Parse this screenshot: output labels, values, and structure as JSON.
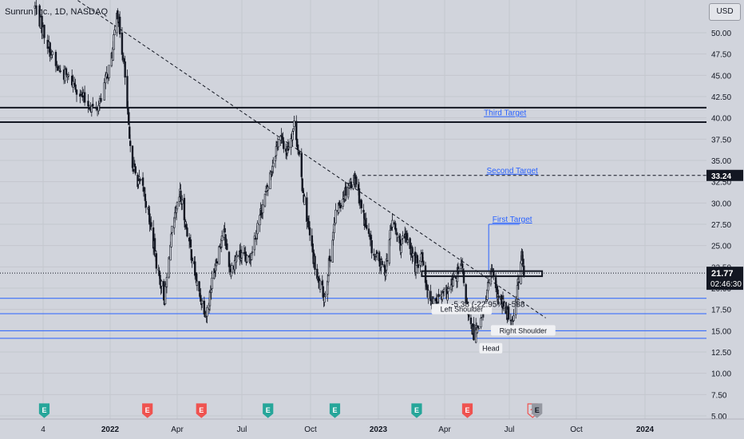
{
  "header": {
    "symbol_title": "Sunrun Inc., 1D, NASDAQ",
    "currency_button": "USD"
  },
  "colors": {
    "background": "#d1d4dc",
    "candle": "#131722",
    "level_line": "#2962ff",
    "target_text": "#2962ff",
    "target_line": "#2962ff"
  },
  "chart_data": {
    "type": "candlestick",
    "symbol": "Sunrun Inc.",
    "interval": "1D",
    "exchange": "NASDAQ",
    "ylim": [
      5.0,
      52.5
    ],
    "y_ticks": [
      "50.00",
      "47.50",
      "45.00",
      "42.50",
      "40.00",
      "37.50",
      "35.00",
      "32.50",
      "30.00",
      "27.50",
      "25.00",
      "22.50",
      "20.00",
      "17.50",
      "15.00",
      "12.50",
      "10.00",
      "7.50",
      "5.00"
    ],
    "x_ticks": [
      "4",
      "2022",
      "Apr",
      "Jul",
      "Oct",
      "2023",
      "Apr",
      "Jul",
      "Oct",
      "2024"
    ],
    "close_path": [
      {
        "date": "2021-10-28",
        "close": 53.0
      },
      {
        "date": "2021-11-15",
        "close": 46.0
      },
      {
        "date": "2021-12-01",
        "close": 44.0
      },
      {
        "date": "2021-12-10",
        "close": 42.0
      },
      {
        "date": "2021-12-20",
        "close": 40.8
      },
      {
        "date": "2022-01-05",
        "close": 48.0
      },
      {
        "date": "2022-01-10",
        "close": 53.0
      },
      {
        "date": "2022-01-20",
        "close": 46.0
      },
      {
        "date": "2022-01-28",
        "close": 36.0
      },
      {
        "date": "2022-02-05",
        "close": 33.0
      },
      {
        "date": "2022-02-15",
        "close": 31.5
      },
      {
        "date": "2022-02-25",
        "close": 27.0
      },
      {
        "date": "2022-03-05",
        "close": 22.5
      },
      {
        "date": "2022-03-15",
        "close": 18.7
      },
      {
        "date": "2022-03-25",
        "close": 26.5
      },
      {
        "date": "2022-04-05",
        "close": 31.0
      },
      {
        "date": "2022-04-20",
        "close": 24.5
      },
      {
        "date": "2022-05-01",
        "close": 19.5
      },
      {
        "date": "2022-05-12",
        "close": 17.0
      },
      {
        "date": "2022-05-25",
        "close": 23.0
      },
      {
        "date": "2022-06-05",
        "close": 27.0
      },
      {
        "date": "2022-06-15",
        "close": 22.0
      },
      {
        "date": "2022-06-25",
        "close": 24.0
      },
      {
        "date": "2022-07-10",
        "close": 23.0
      },
      {
        "date": "2022-07-25",
        "close": 28.5
      },
      {
        "date": "2022-08-05",
        "close": 32.0
      },
      {
        "date": "2022-08-12",
        "close": 35.0
      },
      {
        "date": "2022-08-20",
        "close": 38.0
      },
      {
        "date": "2022-08-30",
        "close": 36.0
      },
      {
        "date": "2022-09-10",
        "close": 39.5
      },
      {
        "date": "2022-09-20",
        "close": 32.0
      },
      {
        "date": "2022-09-30",
        "close": 26.0
      },
      {
        "date": "2022-10-10",
        "close": 21.0
      },
      {
        "date": "2022-10-20",
        "close": 19.0
      },
      {
        "date": "2022-10-28",
        "close": 24.0
      },
      {
        "date": "2022-11-05",
        "close": 29.0
      },
      {
        "date": "2022-11-20",
        "close": 32.0
      },
      {
        "date": "2022-12-01",
        "close": 33.0
      },
      {
        "date": "2022-12-10",
        "close": 29.0
      },
      {
        "date": "2022-12-25",
        "close": 24.0
      },
      {
        "date": "2023-01-10",
        "close": 22.0
      },
      {
        "date": "2023-01-20",
        "close": 28.0
      },
      {
        "date": "2023-01-30",
        "close": 25.0
      },
      {
        "date": "2023-02-10",
        "close": 26.0
      },
      {
        "date": "2023-02-20",
        "close": 22.5
      },
      {
        "date": "2023-03-01",
        "close": 24.0
      },
      {
        "date": "2023-03-10",
        "close": 19.0
      },
      {
        "date": "2023-03-20",
        "close": 18.5
      },
      {
        "date": "2023-04-05",
        "close": 19.5
      },
      {
        "date": "2023-04-15",
        "close": 21.0
      },
      {
        "date": "2023-04-25",
        "close": 22.5
      },
      {
        "date": "2023-05-05",
        "close": 16.0
      },
      {
        "date": "2023-05-12",
        "close": 14.7
      },
      {
        "date": "2023-05-25",
        "close": 17.0
      },
      {
        "date": "2023-06-05",
        "close": 22.0
      },
      {
        "date": "2023-06-15",
        "close": 19.0
      },
      {
        "date": "2023-06-25",
        "close": 17.5
      },
      {
        "date": "2023-07-05",
        "close": 16.0
      },
      {
        "date": "2023-07-12",
        "close": 20.0
      },
      {
        "date": "2023-07-18",
        "close": 23.8
      },
      {
        "date": "2023-07-21",
        "close": 21.77
      }
    ],
    "last_price": "21.77",
    "countdown": "02:46:30",
    "targets": [
      {
        "label": "Third Target",
        "price": 40.0
      },
      {
        "label": "Second Target",
        "price": 33.24,
        "price_tag": "33.24"
      },
      {
        "label": "First Target",
        "price": 27.5
      }
    ],
    "pattern_labels": [
      {
        "label": "Left Shoulder",
        "date": "2023-04-25",
        "price": 17.5
      },
      {
        "label": "Head",
        "date": "2023-06-05",
        "price": 12.9
      },
      {
        "label": "Right Shoulder",
        "date": "2023-07-20",
        "price": 15.0
      }
    ],
    "measure_text": "-5.38 (-22.95%) -538",
    "levels": [
      {
        "price": 41.2,
        "style": "solid",
        "color": "#131722"
      },
      {
        "price": 39.5,
        "style": "solid",
        "color": "#131722"
      },
      {
        "price": 18.8,
        "style": "solid",
        "color": "#2962ff"
      },
      {
        "price": 17.0,
        "style": "solid",
        "color": "#2962ff"
      },
      {
        "price": 15.0,
        "style": "solid",
        "color": "#2962ff"
      },
      {
        "price": 14.1,
        "style": "solid",
        "color": "#2962ff"
      }
    ],
    "neckline_box": {
      "from": "2023-03-01",
      "to": "2023-08-15",
      "top": 22.0,
      "bottom": 21.4
    },
    "trendline": {
      "from_date": "2021-11-10",
      "from_price": 56.0,
      "to_date": "2023-08-20",
      "to_price": 16.5
    },
    "earnings_markers": [
      {
        "date": "2021-11-05",
        "type": "E",
        "color": "#26a69a"
      },
      {
        "date": "2022-02-20",
        "type": "E",
        "color": "#ef5350"
      },
      {
        "date": "2022-05-05",
        "type": "E",
        "color": "#ef5350"
      },
      {
        "date": "2022-08-05",
        "type": "E",
        "color": "#26a69a"
      },
      {
        "date": "2022-11-03",
        "type": "E",
        "color": "#26a69a"
      },
      {
        "date": "2023-02-22",
        "type": "E",
        "color": "#26a69a"
      },
      {
        "date": "2023-05-03",
        "type": "E",
        "color": "#ef5350"
      },
      {
        "date": "2023-08-02",
        "type": "splits",
        "color": "#ef5350"
      },
      {
        "date": "2023-08-08",
        "type": "E",
        "color": "#9598a1"
      }
    ],
    "grid": true
  }
}
